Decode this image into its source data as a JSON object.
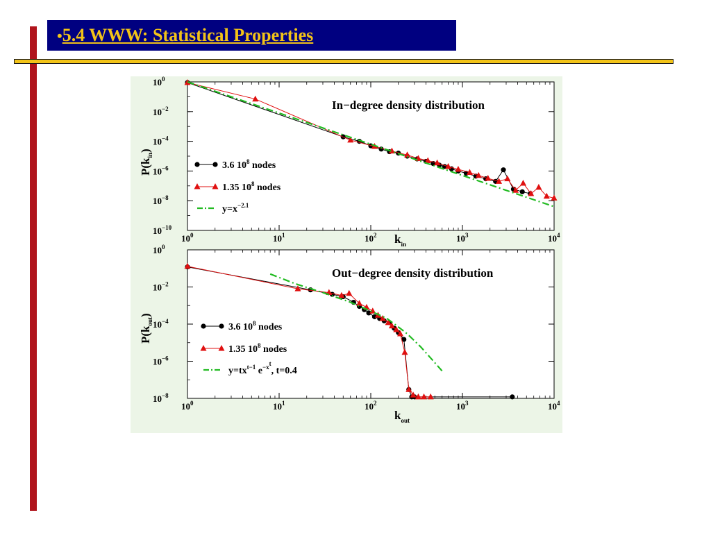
{
  "slide": {
    "bullet": "•",
    "title": "5.4 WWW: Statistical Properties",
    "colors": {
      "title_bg": "#000080",
      "title_fg": "#f2c318",
      "left_bar": "#b0141c",
      "rule": "#f2c318",
      "figure_bg": "#ecf5e7"
    }
  },
  "chart_data": [
    {
      "type": "line",
      "title": "In−degree density distribution",
      "xlabel": "k_in",
      "ylabel": "P(k_in)",
      "x_scale": "log",
      "y_scale": "log",
      "xlim": [
        1,
        10000
      ],
      "ylim": [
        1e-10,
        1
      ],
      "x_ticks": [
        1,
        10,
        100,
        1000,
        10000
      ],
      "y_ticks": [
        1,
        0.01,
        0.0001,
        1e-06,
        1e-08,
        1e-10
      ],
      "legend_position": "bottom-left",
      "series": [
        {
          "name": "3.6 10^8 nodes",
          "color": "#000000",
          "marker": "circle",
          "x": [
            1,
            50,
            75,
            100,
            130,
            160,
            200,
            250,
            320,
            400,
            480,
            560,
            640,
            760,
            900,
            1100,
            1400,
            1800,
            2300,
            2800,
            3600,
            4500,
            5500
          ],
          "y": [
            0.9,
            0.0002,
            0.0001,
            5e-05,
            3e-05,
            2e-05,
            1.6e-05,
            1e-05,
            6.5e-06,
            4.5e-06,
            3.2e-06,
            2.5e-06,
            2e-06,
            1.4e-06,
            1e-06,
            7e-07,
            4.5e-07,
            3e-07,
            2e-07,
            1.2e-06,
            6e-08,
            4e-08,
            3e-08
          ]
        },
        {
          "name": "1.35 10^8 nodes",
          "color": "#e01010",
          "marker": "triangle",
          "x": [
            1,
            5.5,
            60,
            110,
            170,
            250,
            330,
            420,
            530,
            700,
            900,
            1200,
            1500,
            1900,
            2500,
            3100,
            3800,
            4600,
            5600,
            6800,
            8300,
            10000
          ],
          "y": [
            0.9,
            0.07,
            0.00012,
            4.5e-05,
            2.2e-05,
            1.2e-05,
            7e-06,
            5e-06,
            3.5e-06,
            2e-06,
            1.3e-06,
            8e-07,
            5e-07,
            3.2e-07,
            2e-07,
            3e-07,
            5e-08,
            1.5e-07,
            3e-08,
            8e-08,
            2e-08,
            1.5e-08
          ]
        },
        {
          "name": "y=x^−2.1",
          "color": "#22bb22",
          "line": "dash-dot",
          "x": [
            1,
            10000
          ],
          "y": [
            1,
            4e-09
          ]
        }
      ],
      "legend_labels": {
        "s1": {
          "base": "3.6 10",
          "exp": "8",
          "tail": " nodes"
        },
        "s2": {
          "base": "1.35 10",
          "exp": "8",
          "tail": " nodes"
        },
        "s3": {
          "base": "y=x",
          "exp": "−2.1",
          "tail": ""
        }
      },
      "axis_labels": {
        "y_main": "P(k",
        "y_sub": "in",
        "y_close": ")",
        "x_main": "k",
        "x_sub": "in"
      },
      "x_tick_labels": [
        {
          "base": "10",
          "exp": "0"
        },
        {
          "base": "10",
          "exp": "1"
        },
        {
          "base": "10",
          "exp": "2"
        },
        {
          "base": "10",
          "exp": "3"
        },
        {
          "base": "10",
          "exp": "4"
        }
      ],
      "y_tick_labels": [
        {
          "base": "10",
          "exp": "0"
        },
        {
          "base": "10",
          "exp": "−2"
        },
        {
          "base": "10",
          "exp": "−4"
        },
        {
          "base": "10",
          "exp": "−6"
        },
        {
          "base": "10",
          "exp": "−8"
        },
        {
          "base": "10",
          "exp": "−10"
        }
      ]
    },
    {
      "type": "line",
      "title": "Out−degree density distribution",
      "xlabel": "k_out",
      "ylabel": "P(k_out)",
      "x_scale": "log",
      "y_scale": "log",
      "xlim": [
        1,
        10000
      ],
      "ylim": [
        1e-08,
        1
      ],
      "x_ticks": [
        1,
        10,
        100,
        1000,
        10000
      ],
      "y_ticks": [
        1,
        0.01,
        0.0001,
        1e-06,
        1e-08
      ],
      "legend_position": "bottom-left",
      "series": [
        {
          "name": "3.6 10^8 nodes",
          "color": "#000000",
          "marker": "circle",
          "x": [
            1,
            22,
            38,
            50,
            65,
            75,
            85,
            95,
            110,
            125,
            140,
            160,
            180,
            200,
            230,
            260,
            280,
            300,
            3500
          ],
          "y": [
            0.12,
            0.007,
            0.004,
            0.003,
            0.0015,
            0.0009,
            0.0006,
            0.0004,
            0.00025,
            0.0002,
            0.00015,
            0.00012,
            6e-05,
            3.5e-05,
            1.5e-05,
            3e-08,
            1.2e-08,
            1.2e-08,
            1.2e-08
          ]
        },
        {
          "name": "1.35 10^8 nodes",
          "color": "#e01010",
          "marker": "triangle",
          "x": [
            1,
            16,
            35,
            48,
            58,
            75,
            90,
            105,
            120,
            135,
            155,
            170,
            190,
            210,
            235,
            260,
            290,
            330,
            380,
            450
          ],
          "y": [
            0.13,
            0.008,
            0.005,
            0.0035,
            0.0045,
            0.0013,
            0.0008,
            0.0005,
            0.0003,
            0.0002,
            0.00012,
            8e-05,
            5e-05,
            3e-05,
            3e-06,
            3e-08,
            1.5e-08,
            1.2e-08,
            1.2e-08,
            1.2e-08
          ]
        },
        {
          "name": "y=tx^(t−1) e^(−x^t), t=0.4",
          "color": "#22bb22",
          "line": "dash-dot",
          "x": [
            8,
            15,
            30,
            60,
            100,
            150,
            200,
            250,
            350,
            450,
            600
          ],
          "y": [
            0.05,
            0.015,
            0.005,
            0.0015,
            0.0005,
            0.0002,
            7e-05,
            3e-05,
            6e-06,
            1.5e-06,
            3e-07
          ]
        }
      ],
      "legend_labels": {
        "s1": {
          "base": "3.6 10",
          "exp": "8",
          "tail": " nodes"
        },
        "s2": {
          "base": "1.35 10",
          "exp": "8",
          "tail": " nodes"
        },
        "s3": {
          "p1": "y=tx",
          "e1": "t−1",
          "p2": " e",
          "e2": "−x",
          "e3": "t",
          "tail": ", t=0.4"
        }
      },
      "axis_labels": {
        "y_main": "P(k",
        "y_sub": "out",
        "y_close": ")",
        "x_main": "k",
        "x_sub": "out"
      },
      "x_tick_labels": [
        {
          "base": "10",
          "exp": "0"
        },
        {
          "base": "10",
          "exp": "1"
        },
        {
          "base": "10",
          "exp": "2"
        },
        {
          "base": "10",
          "exp": "3"
        },
        {
          "base": "10",
          "exp": "4"
        }
      ],
      "y_tick_labels": [
        {
          "base": "10",
          "exp": "0"
        },
        {
          "base": "10",
          "exp": "−2"
        },
        {
          "base": "10",
          "exp": "−4"
        },
        {
          "base": "10",
          "exp": "−6"
        },
        {
          "base": "10",
          "exp": "−8"
        }
      ]
    }
  ]
}
